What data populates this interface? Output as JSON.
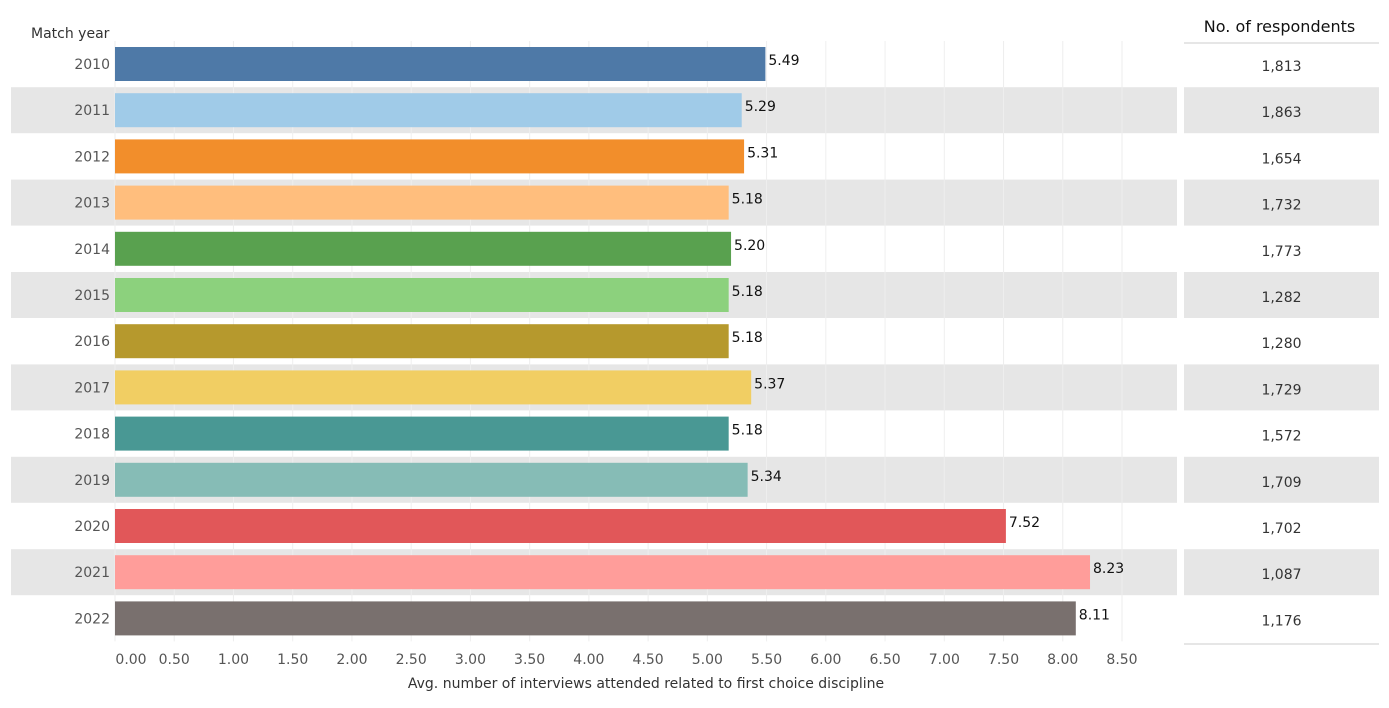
{
  "chart_data": {
    "type": "bar",
    "orientation": "horizontal",
    "ylabel": "Match year",
    "xlabel": "Avg. number of interviews attended related to first choice discipline",
    "categories": [
      "2010",
      "2011",
      "2012",
      "2013",
      "2014",
      "2015",
      "2016",
      "2017",
      "2018",
      "2019",
      "2020",
      "2021",
      "2022"
    ],
    "values": [
      5.49,
      5.29,
      5.31,
      5.18,
      5.2,
      5.18,
      5.18,
      5.37,
      5.18,
      5.34,
      7.52,
      8.23,
      8.11
    ],
    "value_labels": [
      "5.49",
      "5.29",
      "5.31",
      "5.18",
      "5.20",
      "5.18",
      "5.18",
      "5.37",
      "5.18",
      "5.34",
      "7.52",
      "8.23",
      "8.11"
    ],
    "colors": [
      "#4e79a7",
      "#a0cbe8",
      "#f28e2b",
      "#ffbe7d",
      "#59a14f",
      "#8cd17d",
      "#b6992d",
      "#f1ce63",
      "#499894",
      "#86bcb6",
      "#e15759",
      "#ff9d9a",
      "#79706e"
    ],
    "x_ticks": [
      "0.00",
      "0.50",
      "1.00",
      "1.50",
      "2.00",
      "2.50",
      "3.00",
      "3.50",
      "4.00",
      "4.50",
      "5.00",
      "5.50",
      "6.00",
      "6.50",
      "7.00",
      "7.50",
      "8.00",
      "8.50"
    ],
    "xlim": [
      0,
      8.5
    ],
    "grid": "vertical",
    "band_color": "#e6e6e6",
    "respondents": {
      "title": "No. of respondents",
      "values": [
        "1,813",
        "1,863",
        "1,654",
        "1,732",
        "1,773",
        "1,282",
        "1,280",
        "1,729",
        "1,572",
        "1,709",
        "1,702",
        "1,087",
        "1,176"
      ]
    }
  }
}
